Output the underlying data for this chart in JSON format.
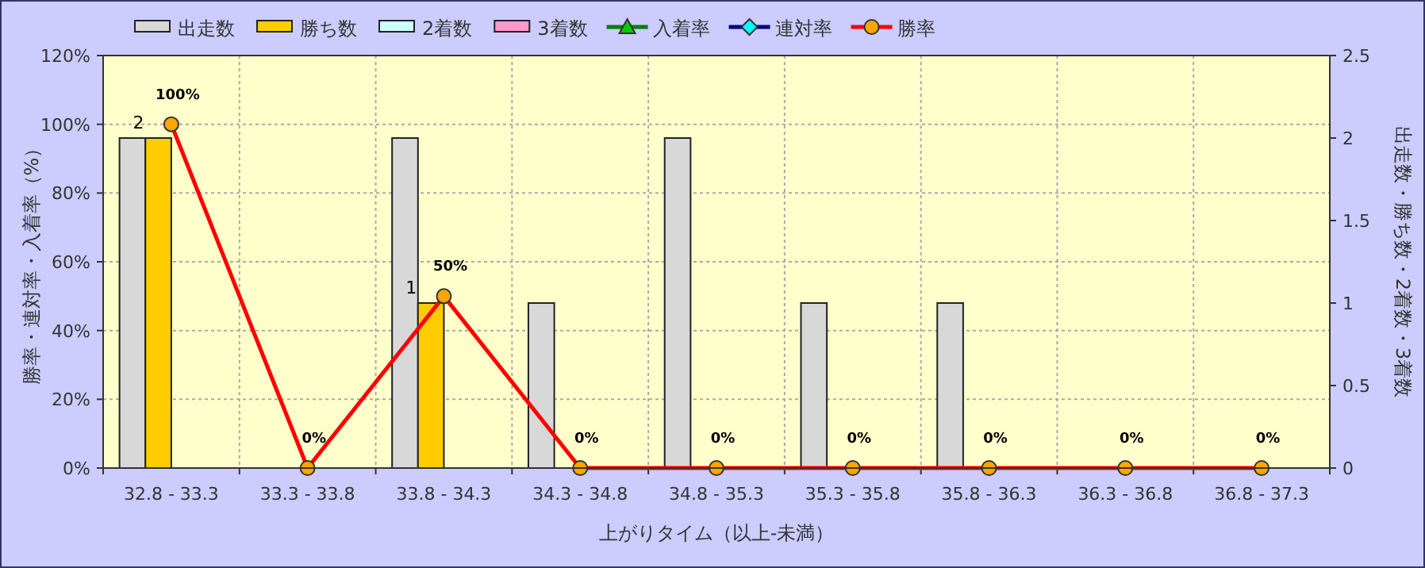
{
  "chart_data": {
    "type": "bar",
    "xlabel": "上がりタイム（以上-未満）",
    "ylabel": "勝率・連対率・入着率（%）",
    "y2label": "出走数・勝ち数・2着数・3着数",
    "categories": [
      "32.8 - 33.3",
      "33.3 - 33.8",
      "33.8 - 34.3",
      "34.3 - 34.8",
      "34.8 - 35.3",
      "35.3 - 35.8",
      "35.8 - 36.3",
      "36.3 - 36.8",
      "36.8 - 37.3"
    ],
    "ylim": [
      0,
      120
    ],
    "yticks": [
      {
        "value": 0,
        "label": "0%"
      },
      {
        "value": 20,
        "label": "20%"
      },
      {
        "value": 40,
        "label": "40%"
      },
      {
        "value": 60,
        "label": "60%"
      },
      {
        "value": 80,
        "label": "80%"
      },
      {
        "value": 100,
        "label": "100%"
      },
      {
        "value": 120,
        "label": "120%"
      }
    ],
    "y2lim": [
      0,
      2.5
    ],
    "y2ticks": [
      0,
      0.5,
      1,
      1.5,
      2,
      2.5
    ],
    "grid": true,
    "legend": "top",
    "series": [
      {
        "name": "出走数",
        "type": "bar",
        "axis": "y2",
        "color": "#d8d8d8",
        "values": [
          2,
          0,
          2,
          1,
          2,
          1,
          1,
          0,
          0
        ]
      },
      {
        "name": "勝ち数",
        "type": "bar",
        "axis": "y2",
        "color": "#ffcc00",
        "values": [
          2,
          0,
          1,
          0,
          0,
          0,
          0,
          0,
          0
        ],
        "value_labels": [
          "2",
          null,
          "1",
          null,
          null,
          null,
          null,
          null,
          null
        ]
      },
      {
        "name": "2着数",
        "type": "bar",
        "axis": "y2",
        "color": "#ccffff",
        "values": [
          0,
          0,
          0,
          0,
          0,
          0,
          0,
          0,
          0
        ]
      },
      {
        "name": "3着数",
        "type": "bar",
        "axis": "y2",
        "color": "#ff99cc",
        "values": [
          0,
          0,
          0,
          0,
          0,
          0,
          0,
          0,
          0
        ]
      },
      {
        "name": "入着率",
        "type": "line",
        "color": "#008000",
        "marker": "triangle",
        "values": [
          null,
          null,
          null,
          null,
          null,
          null,
          null,
          null,
          null
        ]
      },
      {
        "name": "連対率",
        "type": "line",
        "color": "#000080",
        "marker": "diamond",
        "values": [
          null,
          null,
          null,
          null,
          null,
          null,
          null,
          null,
          null
        ]
      },
      {
        "name": "勝率",
        "type": "line",
        "color": "#ff0000",
        "marker": "circle",
        "values": [
          100,
          0,
          50,
          0,
          0,
          0,
          0,
          0,
          0
        ],
        "value_labels": [
          "100%",
          "0%",
          "50%",
          "0%",
          "0%",
          "0%",
          "0%",
          "0%",
          "0%"
        ]
      }
    ]
  }
}
